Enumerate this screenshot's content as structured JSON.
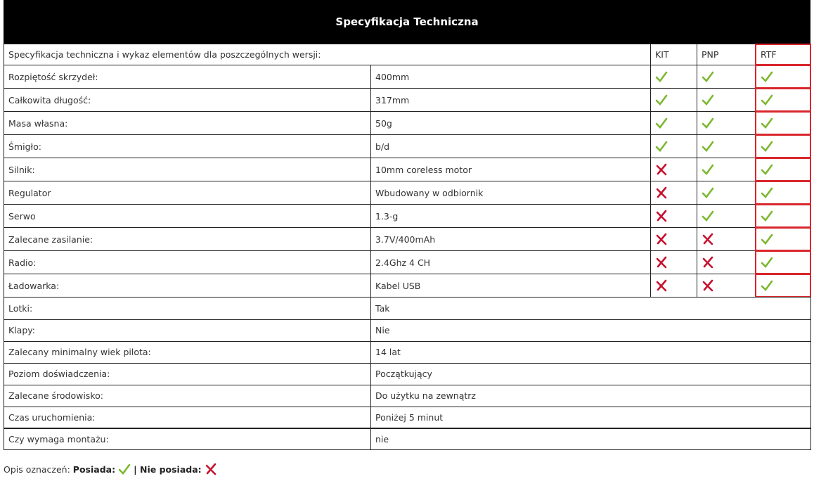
{
  "header": {
    "title": "Specyfikacja Techniczna"
  },
  "table": {
    "intro": "Specyfikacja techniczna i wykaz elementów dla poszczególnych wersji:",
    "columns": [
      "KIT",
      "PNP",
      "RTF"
    ],
    "versioned_rows": [
      {
        "label": "Rozpiętość skrzydeł:",
        "value": "400mm",
        "availability": [
          true,
          true,
          true
        ]
      },
      {
        "label": "Całkowita długość:",
        "value": "317mm",
        "availability": [
          true,
          true,
          true
        ]
      },
      {
        "label": "Masa własna:",
        "value": "50g",
        "availability": [
          true,
          true,
          true
        ]
      },
      {
        "label": "Śmigło:",
        "value": "b/d",
        "availability": [
          true,
          true,
          true
        ]
      },
      {
        "label": "Silnik:",
        "value": "10mm coreless motor",
        "availability": [
          false,
          true,
          true
        ]
      },
      {
        "label": "Regulator",
        "value": "Wbudowany w odbiornik",
        "availability": [
          false,
          true,
          true
        ]
      },
      {
        "label": "Serwo",
        "value": "1.3-g",
        "availability": [
          false,
          true,
          true
        ]
      },
      {
        "label": "Zalecane zasilanie:",
        "value": "3.7V/400mAh",
        "availability": [
          false,
          false,
          true
        ]
      },
      {
        "label": "Radio:",
        "value": "2.4Ghz 4 CH",
        "availability": [
          false,
          false,
          true
        ]
      },
      {
        "label": "Ładowarka:",
        "value": "Kabel USB",
        "availability": [
          false,
          false,
          true
        ]
      }
    ],
    "rows": [
      {
        "label": "Lotki:",
        "value": "Tak"
      },
      {
        "label": "Klapy:",
        "value": "Nie"
      },
      {
        "label": "Zalecany minimalny wiek pilota:",
        "value": "14 lat"
      },
      {
        "label": "Poziom doświadczenia:",
        "value": "Początkujący"
      },
      {
        "label": "Zalecane środowisko:",
        "value": "Do użytku na zewnątrz"
      },
      {
        "label": "Czas uruchomienia:",
        "value": "Poniżej 5 minut"
      },
      {
        "label": "Czy wymaga montażu:",
        "value": "nie"
      }
    ]
  },
  "legend": {
    "intro": "Opis oznaczeń:",
    "yes": "Posiada:",
    "no": "| Nie posiada:"
  }
}
